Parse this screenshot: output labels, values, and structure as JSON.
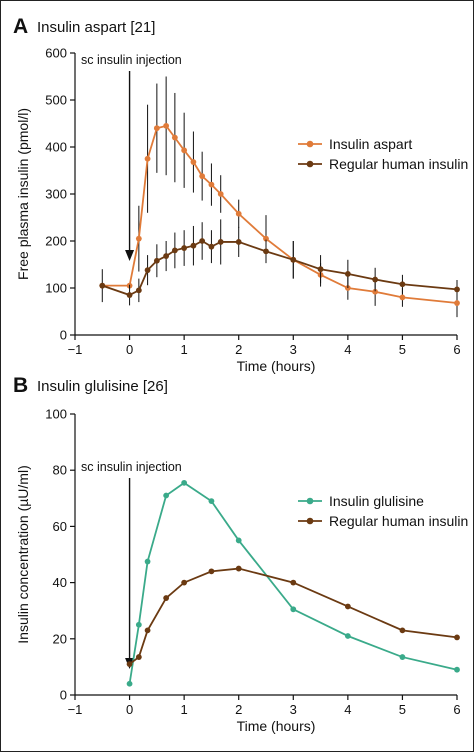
{
  "chart_data": [
    {
      "type": "line",
      "panel_letter": "A",
      "title": "Insulin aspart [21]",
      "xlabel": "Time (hours)",
      "ylabel": "Free plasma insulin (pmol/l)",
      "xlim": [
        -1,
        6
      ],
      "ylim": [
        0,
        600
      ],
      "xticks": [
        -1,
        0,
        1,
        2,
        3,
        4,
        5,
        6
      ],
      "xtick_labels": [
        "−1",
        "0",
        "1",
        "2",
        "3",
        "4",
        "5",
        "6"
      ],
      "yticks": [
        0,
        100,
        200,
        300,
        400,
        500,
        600
      ],
      "grid": false,
      "legend_position": "upper-right",
      "annotation": {
        "text": "sc insulin injection",
        "x": 0
      },
      "series": [
        {
          "name": "Insulin aspart",
          "color": "#e07b39",
          "x": [
            -0.5,
            0,
            0.17,
            0.33,
            0.5,
            0.67,
            0.83,
            1,
            1.17,
            1.33,
            1.5,
            1.67,
            2,
            2.5,
            3,
            3.5,
            4,
            4.5,
            5,
            6
          ],
          "y": [
            105,
            105,
            205,
            375,
            440,
            445,
            420,
            393,
            368,
            338,
            320,
            300,
            258,
            205,
            160,
            128,
            100,
            92,
            80,
            68
          ],
          "error": [
            0,
            0,
            70,
            115,
            95,
            105,
            95,
            80,
            65,
            52,
            45,
            40,
            30,
            50,
            40,
            25,
            25,
            30,
            20,
            30
          ]
        },
        {
          "name": "Regular human insulin",
          "color": "#6b3a12",
          "x": [
            -0.5,
            0,
            0.17,
            0.33,
            0.5,
            0.67,
            0.83,
            1,
            1.17,
            1.33,
            1.5,
            1.67,
            2,
            2.5,
            3,
            3.5,
            4,
            4.5,
            5,
            6
          ],
          "y": [
            105,
            85,
            95,
            138,
            158,
            168,
            180,
            185,
            190,
            200,
            188,
            198,
            198,
            178,
            160,
            140,
            130,
            118,
            108,
            97
          ],
          "error": [
            35,
            22,
            25,
            32,
            35,
            32,
            38,
            38,
            42,
            40,
            35,
            48,
            32,
            25,
            40,
            30,
            30,
            25,
            20,
            20
          ]
        }
      ]
    },
    {
      "type": "line",
      "panel_letter": "B",
      "title": "Insulin glulisine [26]",
      "xlabel": "Time (hours)",
      "ylabel": "Insulin concentration (µU/ml)",
      "xlim": [
        -1,
        6
      ],
      "ylim": [
        0,
        100
      ],
      "xticks": [
        -1,
        0,
        1,
        2,
        3,
        4,
        5,
        6
      ],
      "xtick_labels": [
        "−1",
        "0",
        "1",
        "2",
        "3",
        "4",
        "5",
        "6"
      ],
      "yticks": [
        0,
        20,
        40,
        60,
        80,
        100
      ],
      "grid": false,
      "legend_position": "right",
      "annotation": {
        "text": "sc insulin injection",
        "x": 0
      },
      "series": [
        {
          "name": "Insulin glulisine",
          "color": "#3aaa8a",
          "x": [
            0,
            0.17,
            0.33,
            0.67,
            1,
            1.5,
            2,
            3,
            4,
            5,
            6
          ],
          "y": [
            4,
            25,
            47.5,
            71,
            75.5,
            69,
            55,
            30.5,
            21,
            13.5,
            9
          ]
        },
        {
          "name": "Regular human insulin",
          "color": "#6b3a12",
          "x": [
            0,
            0.17,
            0.33,
            0.67,
            1,
            1.5,
            2,
            3,
            4,
            5,
            6
          ],
          "y": [
            11,
            13.5,
            23,
            34.5,
            40,
            44,
            45,
            40,
            31.5,
            23,
            20.5
          ]
        }
      ]
    }
  ]
}
